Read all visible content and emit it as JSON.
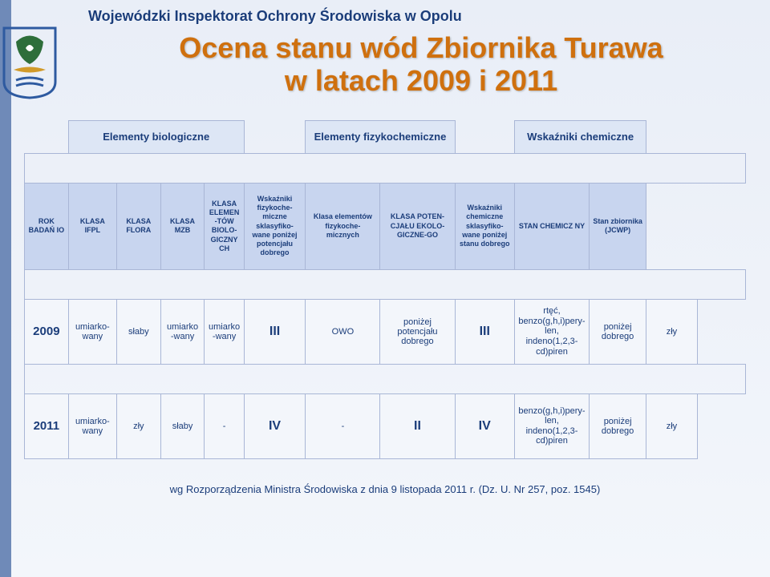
{
  "org": "Wojewódzki Inspektorat Ochrony Środowiska w Opolu",
  "title_line1": "Ocena stanu wód Zbiornika Turawa",
  "title_line2": "w latach 2009 i 2011",
  "group_headers": {
    "bio": "Elementy biologiczne",
    "phys": "Elementy fizykochemiczne",
    "chem": "Wskaźniki chemiczne"
  },
  "col_headers": {
    "rok": "ROK BADAŃ IO",
    "ifpl": "KLASA IFPL",
    "flora": "KLASA FLORA",
    "mzb": "KLASA MZB",
    "bioclass": "KLASA ELEMEN-TÓW BIOLO-GICZNYCH",
    "phys_ind": "Wskaźniki fizykoche-miczne sklasyfiko-wane poniżej potencjału dobrego",
    "phys_class": "Klasa elementów fizykoche-micznych",
    "eco": "KLASA POTEN-CJAŁU EKOLO-GICZNE-GO",
    "chem_ind": "Wskaźniki chemiczne sklasyfiko-wane poniżej stanu dobrego",
    "chem_state": "STAN CHEMICZ NY",
    "jcwp": "Stan zbiornika (JCWP)"
  },
  "rows": {
    "2009": {
      "year": "2009",
      "ifpl": "umiarko-wany",
      "flora": "słaby",
      "mzb": "umiarko -wany",
      "bioclass": "umiarko -wany",
      "phys_ind": "III",
      "phys_class": "OWO",
      "eco": "poniżej potencjału dobrego",
      "eco_class": "III",
      "chem_ind": "rtęć,\nbenzo(g,h,i)pery-len,\nindeno(1,2,3-cd)piren",
      "chem_state": "poniżej dobrego",
      "jcwp": "zły"
    },
    "2011": {
      "year": "2011",
      "ifpl": "umiarko-wany",
      "flora": "zły",
      "mzb": "słaby",
      "bioclass": "-",
      "phys_ind": "IV",
      "phys_class": "-",
      "eco": "II",
      "eco_class": "IV",
      "chem_ind": "benzo(g,h,i)pery-len,\nindeno(1,2,3-cd)piren",
      "chem_state": "poniżej dobrego",
      "jcwp": "zły"
    }
  },
  "footer": "wg Rozporządzenia Ministra Środowiska z dnia 9 listopada 2011 r. (Dz. U. Nr 257, poz. 1545)",
  "colors": {
    "title": "#cf700e",
    "text": "#1b3d7a",
    "header_bg": "#c8d5ef",
    "group_bg": "#dde6f5",
    "cell_bg": "#f3f6fb",
    "border": "#a9b6d6",
    "sidebar": "#6f8ab8"
  }
}
